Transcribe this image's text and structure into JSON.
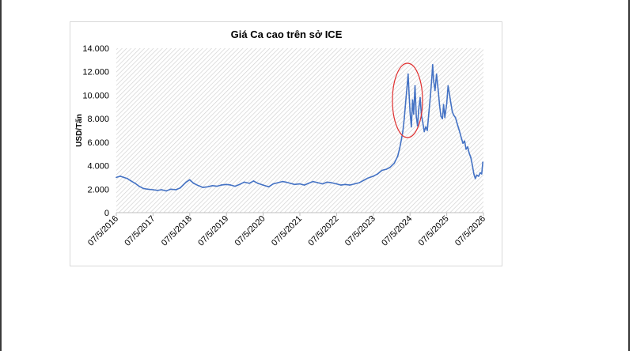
{
  "chart_data": {
    "type": "line",
    "title": "Giá Ca cao trên sở ICE",
    "ylabel": "USD/Tấn",
    "xlabel": "",
    "ylim": [
      0,
      14000
    ],
    "y_ticks": [
      "0",
      "2.000",
      "4.000",
      "6.000",
      "8.000",
      "10.000",
      "12.000",
      "14.000"
    ],
    "y_tick_values": [
      0,
      2000,
      4000,
      6000,
      8000,
      10000,
      12000,
      14000
    ],
    "x_ticks": [
      "07/5/2016",
      "07/5/2017",
      "07/5/2018",
      "07/5/2019",
      "07/5/2020",
      "07/5/2021",
      "07/5/2022",
      "07/5/2023",
      "07/5/2024",
      "07/5/2025",
      "07/5/2026"
    ],
    "grid": false,
    "plot_background": "hatched",
    "line_color": "#4472c4",
    "annotation": {
      "shape": "ellipse",
      "color": "#e03030",
      "around_date": "2024-03"
    },
    "series": [
      {
        "points": [
          [
            "2016-05-07",
            3000
          ],
          [
            "2016-06-15",
            3100
          ],
          [
            "2016-07-20",
            3000
          ],
          [
            "2016-08-25",
            2900
          ],
          [
            "2016-10-01",
            2700
          ],
          [
            "2016-11-10",
            2500
          ],
          [
            "2016-12-20",
            2250
          ],
          [
            "2017-02-01",
            2050
          ],
          [
            "2017-03-15",
            2000
          ],
          [
            "2017-05-07",
            1950
          ],
          [
            "2017-06-20",
            1900
          ],
          [
            "2017-08-01",
            1950
          ],
          [
            "2017-09-15",
            1850
          ],
          [
            "2017-11-01",
            2000
          ],
          [
            "2017-12-20",
            1950
          ],
          [
            "2018-02-01",
            2100
          ],
          [
            "2018-04-01",
            2600
          ],
          [
            "2018-05-07",
            2800
          ],
          [
            "2018-06-15",
            2500
          ],
          [
            "2018-08-01",
            2300
          ],
          [
            "2018-09-15",
            2150
          ],
          [
            "2018-11-01",
            2200
          ],
          [
            "2018-12-20",
            2300
          ],
          [
            "2019-02-01",
            2250
          ],
          [
            "2019-03-15",
            2350
          ],
          [
            "2019-05-07",
            2400
          ],
          [
            "2019-06-20",
            2350
          ],
          [
            "2019-08-01",
            2250
          ],
          [
            "2019-09-15",
            2400
          ],
          [
            "2019-11-01",
            2600
          ],
          [
            "2019-12-20",
            2500
          ],
          [
            "2020-02-01",
            2700
          ],
          [
            "2020-03-15",
            2500
          ],
          [
            "2020-05-07",
            2350
          ],
          [
            "2020-07-01",
            2200
          ],
          [
            "2020-08-15",
            2450
          ],
          [
            "2020-10-01",
            2550
          ],
          [
            "2020-11-15",
            2650
          ],
          [
            "2020-12-20",
            2600
          ],
          [
            "2021-02-01",
            2500
          ],
          [
            "2021-03-15",
            2400
          ],
          [
            "2021-05-07",
            2450
          ],
          [
            "2021-06-20",
            2350
          ],
          [
            "2021-08-01",
            2500
          ],
          [
            "2021-09-15",
            2650
          ],
          [
            "2021-11-01",
            2550
          ],
          [
            "2021-12-20",
            2450
          ],
          [
            "2022-02-01",
            2600
          ],
          [
            "2022-03-15",
            2550
          ],
          [
            "2022-05-07",
            2450
          ],
          [
            "2022-06-20",
            2350
          ],
          [
            "2022-08-01",
            2400
          ],
          [
            "2022-09-15",
            2350
          ],
          [
            "2022-11-01",
            2450
          ],
          [
            "2022-12-20",
            2550
          ],
          [
            "2023-02-01",
            2750
          ],
          [
            "2023-03-15",
            2950
          ],
          [
            "2023-05-07",
            3100
          ],
          [
            "2023-06-20",
            3300
          ],
          [
            "2023-08-01",
            3600
          ],
          [
            "2023-09-15",
            3700
          ],
          [
            "2023-10-20",
            3850
          ],
          [
            "2023-12-01",
            4200
          ],
          [
            "2024-01-05",
            4800
          ],
          [
            "2024-01-25",
            5500
          ],
          [
            "2024-02-10",
            6200
          ],
          [
            "2024-02-25",
            6900
          ],
          [
            "2024-03-10",
            8000
          ],
          [
            "2024-03-25",
            9500
          ],
          [
            "2024-04-10",
            11000
          ],
          [
            "2024-04-18",
            11800
          ],
          [
            "2024-04-28",
            10000
          ],
          [
            "2024-05-07",
            8500
          ],
          [
            "2024-05-20",
            7300
          ],
          [
            "2024-06-01",
            9600
          ],
          [
            "2024-06-12",
            8400
          ],
          [
            "2024-06-25",
            10800
          ],
          [
            "2024-07-08",
            8200
          ],
          [
            "2024-07-20",
            7400
          ],
          [
            "2024-08-01",
            8800
          ],
          [
            "2024-08-15",
            9800
          ],
          [
            "2024-08-28",
            8300
          ],
          [
            "2024-09-10",
            7700
          ],
          [
            "2024-09-25",
            6900
          ],
          [
            "2024-10-10",
            7300
          ],
          [
            "2024-10-25",
            7000
          ],
          [
            "2024-11-10",
            8500
          ],
          [
            "2024-11-25",
            9900
          ],
          [
            "2024-12-10",
            11500
          ],
          [
            "2024-12-18",
            12600
          ],
          [
            "2024-12-28",
            11200
          ],
          [
            "2025-01-10",
            10400
          ],
          [
            "2025-01-25",
            11800
          ],
          [
            "2025-02-10",
            10500
          ],
          [
            "2025-02-25",
            9100
          ],
          [
            "2025-03-10",
            8200
          ],
          [
            "2025-03-25",
            8000
          ],
          [
            "2025-04-05",
            9200
          ],
          [
            "2025-04-18",
            8100
          ],
          [
            "2025-05-07",
            9300
          ],
          [
            "2025-05-20",
            10800
          ],
          [
            "2025-06-01",
            10200
          ],
          [
            "2025-06-15",
            9400
          ],
          [
            "2025-07-01",
            8600
          ],
          [
            "2025-07-15",
            8300
          ],
          [
            "2025-08-01",
            8100
          ],
          [
            "2025-08-15",
            7700
          ],
          [
            "2025-09-01",
            7200
          ],
          [
            "2025-09-15",
            6800
          ],
          [
            "2025-10-01",
            6300
          ],
          [
            "2025-10-15",
            5900
          ],
          [
            "2025-11-01",
            6100
          ],
          [
            "2025-11-15",
            5400
          ],
          [
            "2025-12-01",
            5600
          ],
          [
            "2025-12-15",
            5100
          ],
          [
            "2026-01-01",
            4700
          ],
          [
            "2026-01-15",
            4100
          ],
          [
            "2026-02-01",
            3300
          ],
          [
            "2026-02-15",
            2900
          ],
          [
            "2026-03-01",
            3200
          ],
          [
            "2026-03-20",
            3100
          ],
          [
            "2026-04-05",
            3400
          ],
          [
            "2026-04-20",
            3300
          ],
          [
            "2026-05-01",
            4300
          ]
        ]
      }
    ]
  }
}
